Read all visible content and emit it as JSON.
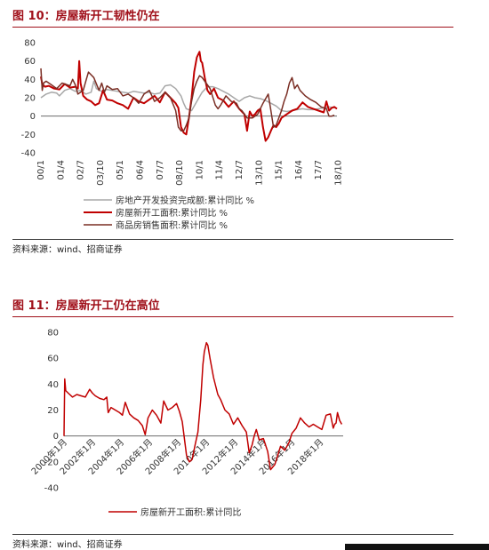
{
  "figure1": {
    "title": "图 10：房屋新开工韧性仍在",
    "source": "资料来源：wind、招商证券"
  },
  "figure2": {
    "title": "图 11：房屋新开工仍在高位",
    "source": "资料来源：wind、招商证券"
  },
  "chart_data": [
    {
      "type": "line",
      "title": "",
      "ylim": [
        -40,
        80
      ],
      "yticks": [
        80,
        60,
        40,
        20,
        0,
        -20,
        -40
      ],
      "xlim": [
        0,
        224
      ],
      "x_tick_labels": [
        "00/1",
        "01/4",
        "02/7",
        "03/10",
        "05/1",
        "06/4",
        "07/7",
        "08/10",
        "10/1",
        "11/4",
        "12/7",
        "13/10",
        "15/1",
        "16/4",
        "17/7",
        "18/10"
      ],
      "x_tick_positions": [
        0,
        15,
        30,
        45,
        60,
        75,
        90,
        105,
        120,
        135,
        150,
        165,
        180,
        195,
        210,
        225
      ],
      "legend_position": "bottom",
      "colors": [
        "#a8a8a8",
        "#c00000",
        "#7a2e24"
      ],
      "series": [
        {
          "name": "房地产开发投资完成额:累计同比 %",
          "x": [
            0,
            4,
            8,
            12,
            14,
            18,
            22,
            26,
            30,
            34,
            38,
            40,
            42,
            46,
            50,
            54,
            58,
            62,
            66,
            70,
            74,
            78,
            82,
            86,
            90,
            94,
            98,
            102,
            106,
            108,
            110,
            114,
            118,
            122,
            126,
            130,
            134,
            138,
            142,
            146,
            150,
            154,
            158,
            162,
            166,
            170,
            174,
            178,
            182,
            186,
            190,
            194,
            198,
            202,
            206,
            210,
            214,
            218,
            222
          ],
          "y": [
            20,
            24,
            26,
            25,
            22,
            28,
            30,
            27,
            28,
            24,
            26,
            38,
            30,
            27,
            29,
            28,
            27,
            26,
            25,
            27,
            26,
            25,
            26,
            24,
            25,
            33,
            34,
            30,
            22,
            14,
            8,
            6,
            16,
            26,
            32,
            32,
            30,
            27,
            24,
            20,
            16,
            20,
            22,
            20,
            19,
            17,
            14,
            11,
            6,
            5,
            6,
            7,
            8,
            7,
            7,
            8,
            9,
            10,
            9
          ]
        },
        {
          "name": "房屋新开工面积:累计同比 %",
          "x": [
            0,
            1,
            3,
            6,
            10,
            14,
            18,
            22,
            26,
            28,
            29,
            30,
            32,
            35,
            38,
            41,
            44,
            47,
            50,
            54,
            58,
            62,
            66,
            70,
            74,
            78,
            82,
            86,
            90,
            94,
            98,
            102,
            104,
            106,
            108,
            110,
            112,
            114,
            116,
            118,
            120,
            121,
            122,
            124,
            126,
            128,
            131,
            134,
            138,
            142,
            146,
            150,
            154,
            156,
            158,
            160,
            162,
            164,
            166,
            168,
            170,
            172,
            174,
            176,
            178,
            180,
            182,
            186,
            190,
            194,
            198,
            202,
            206,
            210,
            214,
            216,
            218,
            220,
            222,
            224
          ],
          "y": [
            43,
            35,
            32,
            33,
            30,
            29,
            35,
            31,
            32,
            30,
            60,
            36,
            22,
            18,
            16,
            12,
            14,
            28,
            18,
            17,
            14,
            12,
            8,
            20,
            16,
            14,
            18,
            22,
            15,
            26,
            20,
            14,
            9,
            -12,
            -18,
            -20,
            -2,
            20,
            48,
            64,
            70,
            60,
            58,
            42,
            28,
            24,
            30,
            20,
            17,
            10,
            16,
            8,
            2,
            -16,
            5,
            0,
            2,
            6,
            8,
            -12,
            -27,
            -23,
            -16,
            -10,
            -12,
            -8,
            -2,
            2,
            6,
            8,
            15,
            10,
            8,
            6,
            4,
            16,
            6,
            9,
            10,
            8
          ]
        },
        {
          "name": "商品房销售面积:累计同比 %",
          "x": [
            0,
            1,
            2,
            4,
            8,
            12,
            16,
            20,
            22,
            24,
            26,
            28,
            30,
            32,
            34,
            36,
            40,
            44,
            46,
            48,
            50,
            54,
            58,
            62,
            66,
            70,
            74,
            78,
            82,
            86,
            90,
            94,
            98,
            102,
            104,
            106,
            108,
            110,
            112,
            114,
            116,
            118,
            120,
            122,
            124,
            126,
            128,
            132,
            134,
            136,
            140,
            144,
            148,
            150,
            152,
            156,
            160,
            164,
            168,
            172,
            174,
            176,
            178,
            180,
            182,
            184,
            186,
            188,
            190,
            192,
            194,
            196,
            200,
            204,
            208,
            212,
            216,
            218,
            220,
            222
          ],
          "y": [
            52,
            28,
            36,
            38,
            34,
            30,
            36,
            34,
            33,
            40,
            34,
            24,
            26,
            28,
            38,
            48,
            42,
            28,
            36,
            26,
            33,
            29,
            30,
            22,
            24,
            20,
            14,
            24,
            28,
            16,
            20,
            26,
            20,
            6,
            -12,
            -16,
            -16,
            -10,
            -2,
            16,
            30,
            38,
            44,
            42,
            38,
            34,
            30,
            12,
            8,
            12,
            22,
            16,
            14,
            8,
            6,
            -2,
            -2,
            2,
            14,
            24,
            6,
            -12,
            -10,
            -2,
            6,
            16,
            24,
            36,
            42,
            30,
            34,
            28,
            22,
            18,
            15,
            10,
            8,
            0,
            0,
            1
          ]
        }
      ]
    },
    {
      "type": "line",
      "title": "",
      "ylim": [
        -40,
        80
      ],
      "yticks": [
        80,
        60,
        40,
        20,
        0,
        -20,
        -40
      ],
      "xlim": [
        2000.0,
        2019.6
      ],
      "x_tick_labels": [
        "2000年1月",
        "2002年1月",
        "2004年1月",
        "2006年1月",
        "2008年1月",
        "2010年1月",
        "2012年1月",
        "2014年1月",
        "2016年1月",
        "2018年1月"
      ],
      "x_tick_positions": [
        2000,
        2002,
        2004,
        2006,
        2008,
        2010,
        2012,
        2014,
        2016,
        2018
      ],
      "legend_position": "bottom",
      "colors": [
        "#c00000"
      ],
      "series": [
        {
          "name": "房屋新开工面积:累计同比",
          "x": [
            2000.0,
            2000.05,
            2000.12,
            2000.3,
            2000.6,
            2000.9,
            2001.2,
            2001.5,
            2001.8,
            2002.0,
            2002.2,
            2002.5,
            2002.8,
            2003.0,
            2003.1,
            2003.3,
            2003.6,
            2003.9,
            2004.1,
            2004.3,
            2004.6,
            2004.9,
            2005.2,
            2005.5,
            2005.7,
            2005.9,
            2006.2,
            2006.5,
            2006.8,
            2007.0,
            2007.3,
            2007.6,
            2007.9,
            2008.1,
            2008.3,
            2008.6,
            2008.8,
            2009.0,
            2009.2,
            2009.4,
            2009.6,
            2009.75,
            2009.85,
            2010.0,
            2010.1,
            2010.25,
            2010.5,
            2010.8,
            2011.0,
            2011.3,
            2011.6,
            2011.9,
            2012.2,
            2012.5,
            2012.8,
            2013.0,
            2013.2,
            2013.35,
            2013.5,
            2013.7,
            2014.0,
            2014.3,
            2014.5,
            2014.8,
            2014.95,
            2015.2,
            2015.5,
            2015.8,
            2016.0,
            2016.3,
            2016.6,
            2016.9,
            2017.2,
            2017.5,
            2017.8,
            2018.1,
            2018.4,
            2018.7,
            2018.9,
            2019.0,
            2019.1,
            2019.2,
            2019.35,
            2019.5
          ],
          "y": [
            0,
            44,
            35,
            33,
            30,
            32,
            31,
            30,
            36,
            33,
            31,
            29,
            28,
            30,
            18,
            22,
            20,
            18,
            16,
            26,
            17,
            14,
            12,
            8,
            1,
            14,
            20,
            16,
            10,
            27,
            20,
            22,
            25,
            19,
            11,
            -15,
            -20,
            -18,
            -7,
            3,
            28,
            55,
            65,
            72,
            70,
            60,
            45,
            32,
            28,
            20,
            17,
            9,
            14,
            8,
            3,
            -13,
            -7,
            0,
            5,
            -3,
            -2,
            -12,
            -26,
            -22,
            -17,
            -8,
            -11,
            -5,
            2,
            6,
            14,
            10,
            7,
            9,
            7,
            5,
            16,
            17,
            6,
            9,
            10,
            18,
            12,
            9
          ]
        }
      ]
    }
  ]
}
